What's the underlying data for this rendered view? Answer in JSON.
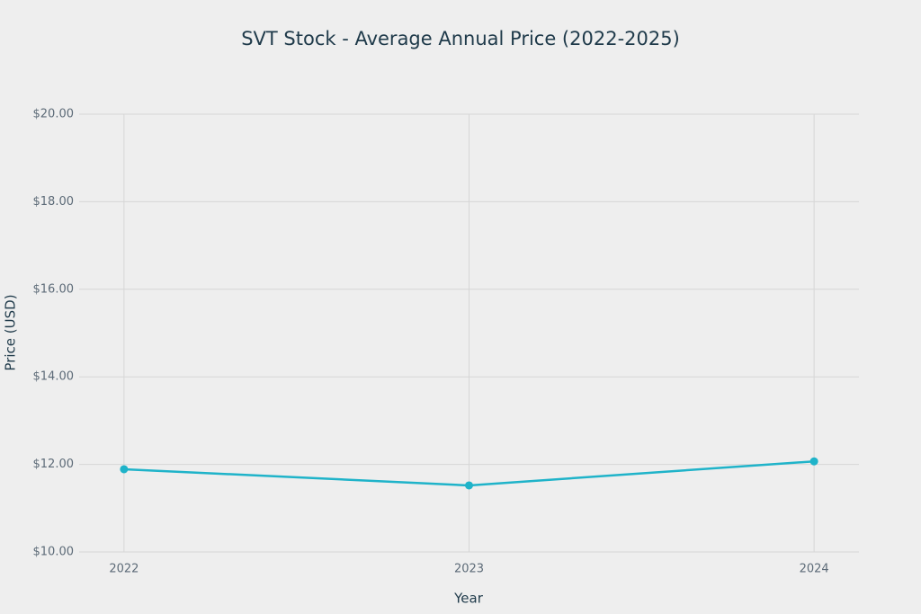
{
  "chart_data": {
    "type": "line",
    "title": "SVT Stock - Average Annual Price (2022-2025)",
    "x_label": "Year",
    "y_label": "Price (USD)",
    "x": [
      2022,
      2023,
      2024
    ],
    "series": [
      {
        "color": "#1fb3c9",
        "values": [
          11.89,
          11.52,
          12.07
        ]
      }
    ],
    "xlim": [
      2021.87,
      2024.13
    ],
    "xticks": [
      2022,
      2023,
      2024
    ],
    "ylim": [
      10,
      20
    ],
    "yticks": [
      {
        "value": 10,
        "label": "$10.00"
      },
      {
        "value": 12,
        "label": "$12.00"
      },
      {
        "value": 14,
        "label": "$14.00"
      },
      {
        "value": 16,
        "label": "$16.00"
      },
      {
        "value": 18,
        "label": "$18.00"
      },
      {
        "value": 20,
        "label": "$20.00"
      }
    ],
    "grid": true
  }
}
